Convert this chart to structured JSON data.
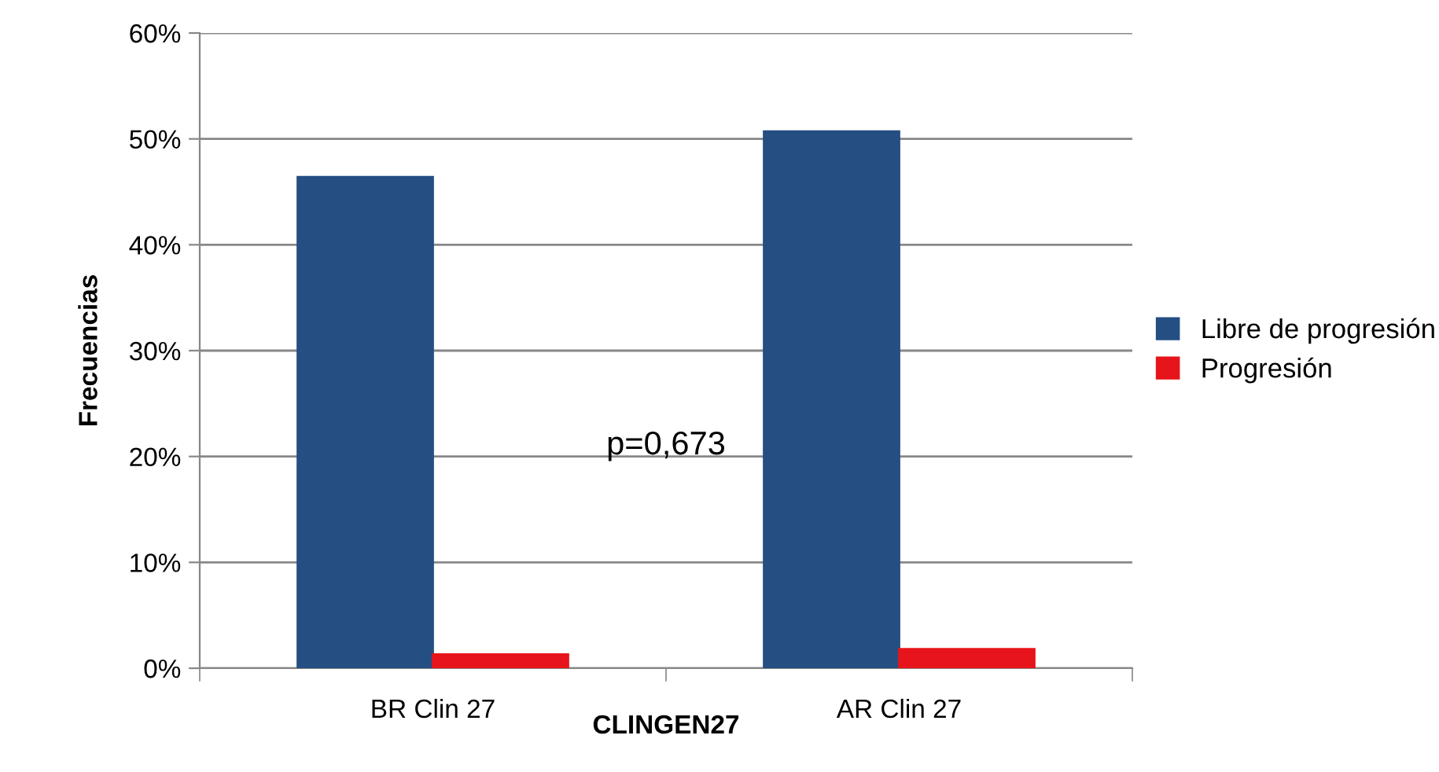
{
  "chart_data": {
    "type": "bar",
    "xlabel": "CLINGEN27",
    "ylabel": "Frecuencias",
    "categories": [
      "BR Clin 27",
      "AR Clin 27"
    ],
    "series": [
      {
        "name": "Libre de progresión",
        "color": "#254f83",
        "values": [
          46.4,
          50.7
        ]
      },
      {
        "name": "Progresión",
        "color": "#e8141b",
        "values": [
          1.3,
          1.8
        ]
      }
    ],
    "ylim": [
      0,
      60
    ],
    "yticks": [
      {
        "value": 0,
        "label": "0%"
      },
      {
        "value": 10,
        "label": "10%"
      },
      {
        "value": 20,
        "label": "20%"
      },
      {
        "value": 30,
        "label": "30%"
      },
      {
        "value": 40,
        "label": "40%"
      },
      {
        "value": 50,
        "label": "50%"
      },
      {
        "value": 60,
        "label": "60%"
      }
    ],
    "grid": "y",
    "legend": "right",
    "annotations": [
      "p=0,673"
    ]
  }
}
